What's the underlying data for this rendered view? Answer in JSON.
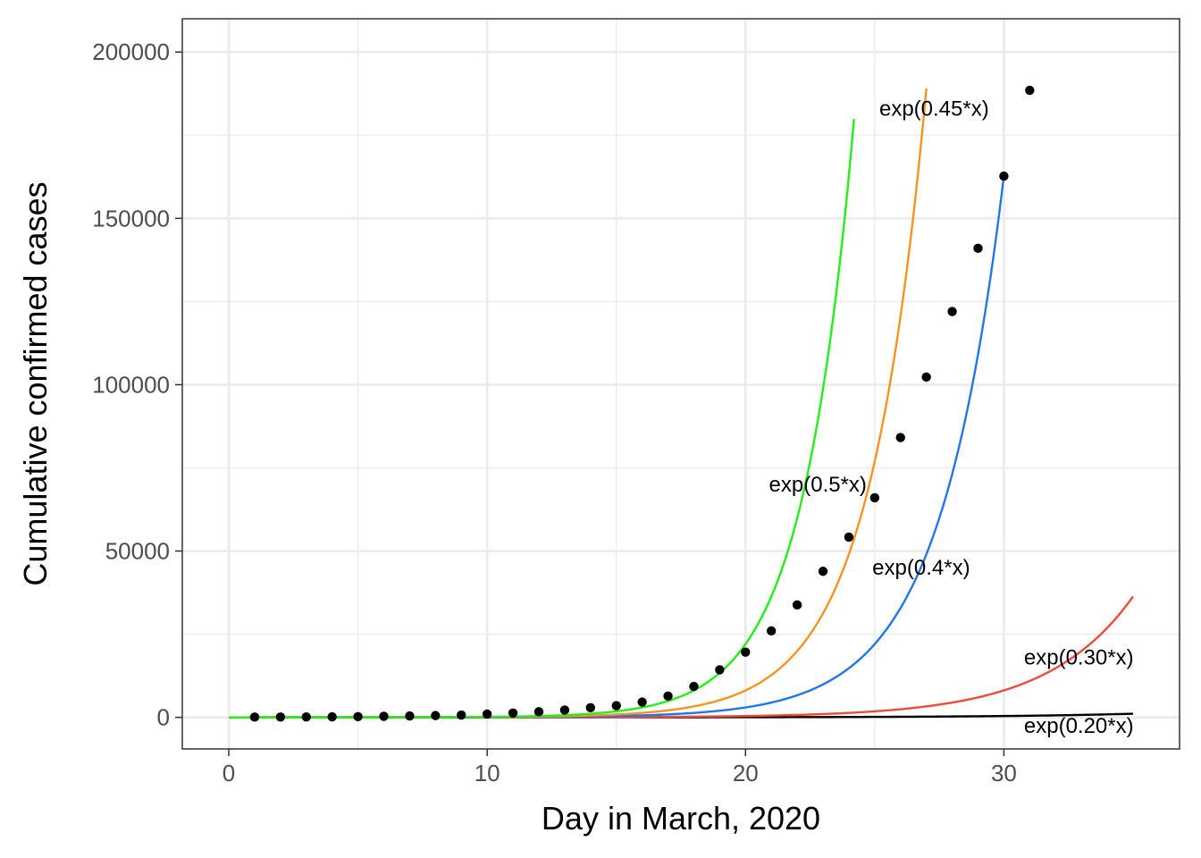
{
  "chart_data": {
    "type": "scatter",
    "title": "",
    "xlabel": "Day in March, 2020",
    "ylabel": "Cumulative confirmed cases",
    "xlim": [
      -1.8,
      36.8
    ],
    "ylim": [
      -9500,
      210000
    ],
    "x_ticks": [
      0,
      10,
      20,
      30
    ],
    "x_tick_labels": [
      "0",
      "10",
      "20",
      "30"
    ],
    "y_ticks": [
      0,
      50000,
      100000,
      150000,
      200000
    ],
    "y_tick_labels": [
      "0",
      "50000",
      "100000",
      "150000",
      "200000"
    ],
    "grid": true,
    "points": {
      "color": "#000000",
      "x": [
        1,
        2,
        3,
        4,
        5,
        6,
        7,
        8,
        9,
        10,
        11,
        12,
        13,
        14,
        15,
        16,
        17,
        18,
        19,
        20,
        21,
        22,
        23,
        24,
        25,
        26,
        27,
        28,
        29,
        30,
        31
      ],
      "y": [
        75,
        100,
        125,
        160,
        220,
        320,
        435,
        540,
        700,
        1000,
        1300,
        1700,
        2200,
        2900,
        3500,
        4600,
        6400,
        9300,
        14300,
        19600,
        26000,
        33800,
        43900,
        54200,
        66000,
        84100,
        102300,
        122000,
        141000,
        162700,
        188500
      ]
    },
    "series": [
      {
        "name": "exp(0.20*x)",
        "rate": 0.2,
        "x_range": [
          0,
          35
        ],
        "color": "#000000"
      },
      {
        "name": "exp(0.30*x)",
        "rate": 0.3,
        "x_range": [
          0,
          35
        ],
        "color": "#ee4b3a"
      },
      {
        "name": "exp(0.4*x)",
        "rate": 0.4,
        "x_range": [
          0,
          30
        ],
        "color": "#1f77e8"
      },
      {
        "name": "exp(0.45*x)",
        "rate": 0.45,
        "x_range": [
          0,
          27
        ],
        "color": "#f7931e"
      },
      {
        "name": "exp(0.5*x)",
        "rate": 0.5,
        "x_range": [
          0,
          24.2
        ],
        "color": "#22f016"
      }
    ],
    "annotations": [
      {
        "text": "exp(0.45*x)",
        "x": 27.3,
        "y": 183000
      },
      {
        "text": "exp(0.5*x)",
        "x": 22.8,
        "y": 70000
      },
      {
        "text": "exp(0.4*x)",
        "x": 26.8,
        "y": 45000
      },
      {
        "text": "exp(0.30*x)",
        "x": 32.9,
        "y": 18000
      },
      {
        "text": "exp(0.20*x)",
        "x": 32.9,
        "y": -2500
      }
    ]
  }
}
